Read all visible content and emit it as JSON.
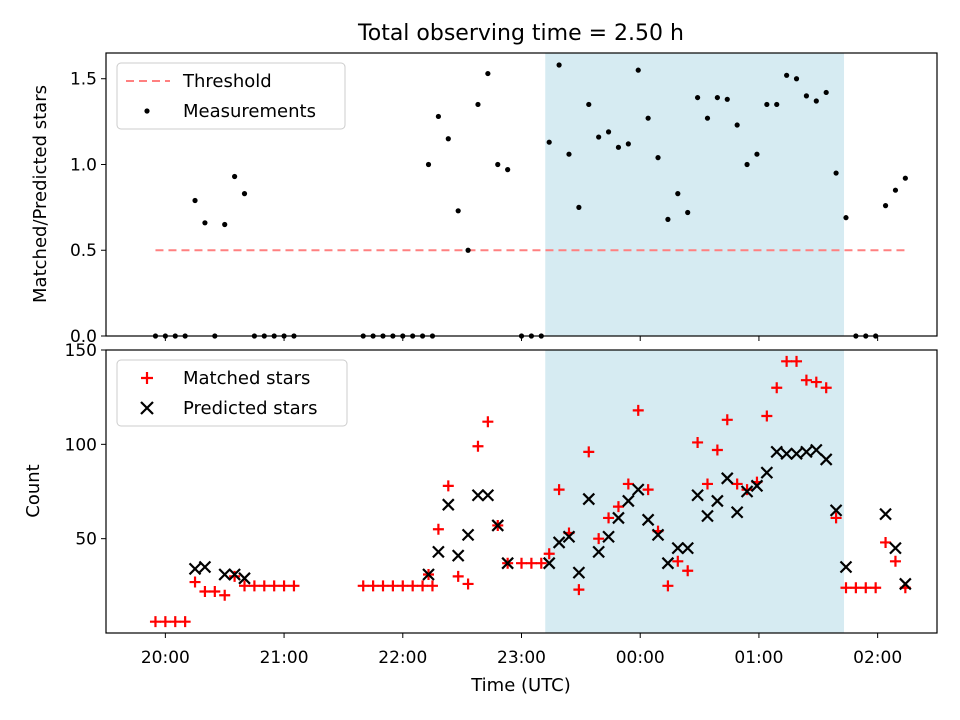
{
  "figure": {
    "title": "Total observing time = 2.50 h"
  },
  "colors": {
    "threshold": "#ff8080",
    "measurement": "#000000",
    "matched": "#ff0000",
    "predicted": "#000000",
    "span_fill": "#add8e6"
  },
  "chart_data": [
    {
      "type": "scatter",
      "panel": "top",
      "ylabel": "Matched/Predicted stars",
      "ylim": [
        0,
        1.65
      ],
      "yticks": [
        "0.0",
        "0.5",
        "1.0",
        "1.5"
      ],
      "ytick_values": [
        0,
        0.5,
        1.0,
        1.5
      ],
      "legend": {
        "placement": "upper-left",
        "entries": [
          "Threshold",
          "Measurements"
        ]
      },
      "shaded_interval": [
        "23:12",
        "01:43"
      ],
      "series": [
        {
          "name": "Threshold",
          "style": "dashed-line",
          "points": [
            [
              "19:55",
              0.5
            ],
            [
              "02:15",
              0.5
            ]
          ]
        },
        {
          "name": "Measurements",
          "style": "dot",
          "points": [
            [
              "19:55",
              0.0
            ],
            [
              "20:00",
              0.0
            ],
            [
              "20:05",
              0.0
            ],
            [
              "20:10",
              0.0
            ],
            [
              "20:15",
              0.79
            ],
            [
              "20:20",
              0.66
            ],
            [
              "20:25",
              0.0
            ],
            [
              "20:30",
              0.65
            ],
            [
              "20:35",
              0.93
            ],
            [
              "20:40",
              0.83
            ],
            [
              "20:45",
              0.0
            ],
            [
              "20:50",
              0.0
            ],
            [
              "20:55",
              0.0
            ],
            [
              "21:00",
              0.0
            ],
            [
              "21:05",
              0.0
            ],
            [
              "21:40",
              0.0
            ],
            [
              "21:45",
              0.0
            ],
            [
              "21:50",
              0.0
            ],
            [
              "21:55",
              0.0
            ],
            [
              "22:00",
              0.0
            ],
            [
              "22:05",
              0.0
            ],
            [
              "22:10",
              0.0
            ],
            [
              "22:15",
              0.0
            ],
            [
              "22:13",
              1.0
            ],
            [
              "22:18",
              1.28
            ],
            [
              "22:23",
              1.15
            ],
            [
              "22:28",
              0.73
            ],
            [
              "22:33",
              0.5
            ],
            [
              "22:38",
              1.35
            ],
            [
              "22:43",
              1.53
            ],
            [
              "22:48",
              1.0
            ],
            [
              "22:53",
              0.97
            ],
            [
              "23:00",
              0.0
            ],
            [
              "23:05",
              0.0
            ],
            [
              "23:10",
              0.0
            ],
            [
              "23:14",
              1.13
            ],
            [
              "23:19",
              1.58
            ],
            [
              "23:24",
              1.06
            ],
            [
              "23:29",
              0.75
            ],
            [
              "23:34",
              1.35
            ],
            [
              "23:39",
              1.16
            ],
            [
              "23:44",
              1.19
            ],
            [
              "23:49",
              1.1
            ],
            [
              "23:54",
              1.12
            ],
            [
              "23:59",
              1.55
            ],
            [
              "00:04",
              1.27
            ],
            [
              "00:09",
              1.04
            ],
            [
              "00:14",
              0.68
            ],
            [
              "00:19",
              0.83
            ],
            [
              "00:24",
              0.72
            ],
            [
              "00:29",
              1.39
            ],
            [
              "00:34",
              1.27
            ],
            [
              "00:39",
              1.39
            ],
            [
              "00:44",
              1.38
            ],
            [
              "00:49",
              1.23
            ],
            [
              "00:54",
              1.0
            ],
            [
              "00:59",
              1.06
            ],
            [
              "01:04",
              1.35
            ],
            [
              "01:09",
              1.35
            ],
            [
              "01:14",
              1.52
            ],
            [
              "01:19",
              1.5
            ],
            [
              "01:24",
              1.4
            ],
            [
              "01:29",
              1.37
            ],
            [
              "01:34",
              1.42
            ],
            [
              "01:39",
              0.95
            ],
            [
              "01:44",
              0.69
            ],
            [
              "01:49",
              0.0
            ],
            [
              "01:54",
              0.0
            ],
            [
              "01:59",
              0.0
            ],
            [
              "02:04",
              0.76
            ],
            [
              "02:09",
              0.85
            ],
            [
              "02:14",
              0.92
            ]
          ]
        }
      ]
    },
    {
      "type": "scatter",
      "panel": "bottom",
      "xlabel": "Time (UTC)",
      "ylabel": "Count",
      "ylim": [
        0,
        150
      ],
      "yticks": [
        "50",
        "100",
        "150"
      ],
      "ytick_values": [
        50,
        100,
        150
      ],
      "xticks": [
        "20:00",
        "21:00",
        "22:00",
        "23:00",
        "00:00",
        "01:00",
        "02:00"
      ],
      "legend": {
        "placement": "upper-left",
        "entries": [
          "Matched stars",
          "Predicted stars"
        ]
      },
      "shaded_interval": [
        "23:12",
        "01:43"
      ],
      "series": [
        {
          "name": "Matched stars",
          "style": "plus",
          "points": [
            [
              "19:55",
              6
            ],
            [
              "20:00",
              6
            ],
            [
              "20:05",
              6
            ],
            [
              "20:10",
              6
            ],
            [
              "20:15",
              27
            ],
            [
              "20:20",
              22
            ],
            [
              "20:25",
              22
            ],
            [
              "20:30",
              20
            ],
            [
              "20:35",
              30
            ],
            [
              "20:40",
              25
            ],
            [
              "20:45",
              25
            ],
            [
              "20:50",
              25
            ],
            [
              "20:55",
              25
            ],
            [
              "21:00",
              25
            ],
            [
              "21:05",
              25
            ],
            [
              "21:40",
              25
            ],
            [
              "21:45",
              25
            ],
            [
              "21:50",
              25
            ],
            [
              "21:55",
              25
            ],
            [
              "22:00",
              25
            ],
            [
              "22:05",
              25
            ],
            [
              "22:10",
              25
            ],
            [
              "22:15",
              25
            ],
            [
              "22:13",
              31
            ],
            [
              "22:18",
              55
            ],
            [
              "22:23",
              78
            ],
            [
              "22:28",
              30
            ],
            [
              "22:33",
              26
            ],
            [
              "22:38",
              99
            ],
            [
              "22:43",
              112
            ],
            [
              "22:48",
              57
            ],
            [
              "22:53",
              37
            ],
            [
              "23:00",
              37
            ],
            [
              "23:05",
              37
            ],
            [
              "23:10",
              37
            ],
            [
              "23:14",
              42
            ],
            [
              "23:19",
              76
            ],
            [
              "23:24",
              53
            ],
            [
              "23:29",
              23
            ],
            [
              "23:34",
              96
            ],
            [
              "23:39",
              50
            ],
            [
              "23:44",
              61
            ],
            [
              "23:49",
              67
            ],
            [
              "23:54",
              79
            ],
            [
              "23:59",
              118
            ],
            [
              "00:04",
              76
            ],
            [
              "00:09",
              54
            ],
            [
              "00:14",
              25
            ],
            [
              "00:19",
              38
            ],
            [
              "00:24",
              33
            ],
            [
              "00:29",
              101
            ],
            [
              "00:34",
              79
            ],
            [
              "00:39",
              97
            ],
            [
              "00:44",
              113
            ],
            [
              "00:49",
              79
            ],
            [
              "00:54",
              76
            ],
            [
              "00:59",
              80
            ],
            [
              "01:04",
              115
            ],
            [
              "01:09",
              130
            ],
            [
              "01:14",
              144
            ],
            [
              "01:19",
              144
            ],
            [
              "01:24",
              134
            ],
            [
              "01:29",
              133
            ],
            [
              "01:34",
              130
            ],
            [
              "01:39",
              61
            ],
            [
              "01:44",
              24
            ],
            [
              "01:49",
              24
            ],
            [
              "01:54",
              24
            ],
            [
              "01:59",
              24
            ],
            [
              "02:04",
              48
            ],
            [
              "02:09",
              38
            ],
            [
              "02:14",
              24
            ]
          ]
        },
        {
          "name": "Predicted stars",
          "style": "x",
          "points": [
            [
              "20:15",
              34
            ],
            [
              "20:20",
              35
            ],
            [
              "20:30",
              31
            ],
            [
              "20:35",
              31
            ],
            [
              "20:40",
              29
            ],
            [
              "22:13",
              31
            ],
            [
              "22:18",
              43
            ],
            [
              "22:23",
              68
            ],
            [
              "22:28",
              41
            ],
            [
              "22:33",
              52
            ],
            [
              "22:38",
              73
            ],
            [
              "22:43",
              73
            ],
            [
              "22:48",
              57
            ],
            [
              "22:53",
              37
            ],
            [
              "23:14",
              37
            ],
            [
              "23:19",
              48
            ],
            [
              "23:24",
              51
            ],
            [
              "23:29",
              32
            ],
            [
              "23:34",
              71
            ],
            [
              "23:39",
              43
            ],
            [
              "23:44",
              51
            ],
            [
              "23:49",
              61
            ],
            [
              "23:54",
              70
            ],
            [
              "23:59",
              76
            ],
            [
              "00:04",
              60
            ],
            [
              "00:09",
              52
            ],
            [
              "00:14",
              37
            ],
            [
              "00:19",
              45
            ],
            [
              "00:24",
              45
            ],
            [
              "00:29",
              73
            ],
            [
              "00:34",
              62
            ],
            [
              "00:39",
              70
            ],
            [
              "00:44",
              82
            ],
            [
              "00:49",
              64
            ],
            [
              "00:54",
              75
            ],
            [
              "00:59",
              78
            ],
            [
              "01:04",
              85
            ],
            [
              "01:09",
              96
            ],
            [
              "01:14",
              95
            ],
            [
              "01:19",
              95
            ],
            [
              "01:24",
              96
            ],
            [
              "01:29",
              97
            ],
            [
              "01:34",
              92
            ],
            [
              "01:39",
              65
            ],
            [
              "01:44",
              35
            ],
            [
              "02:04",
              63
            ],
            [
              "02:09",
              45
            ],
            [
              "02:14",
              26
            ]
          ]
        }
      ]
    }
  ]
}
